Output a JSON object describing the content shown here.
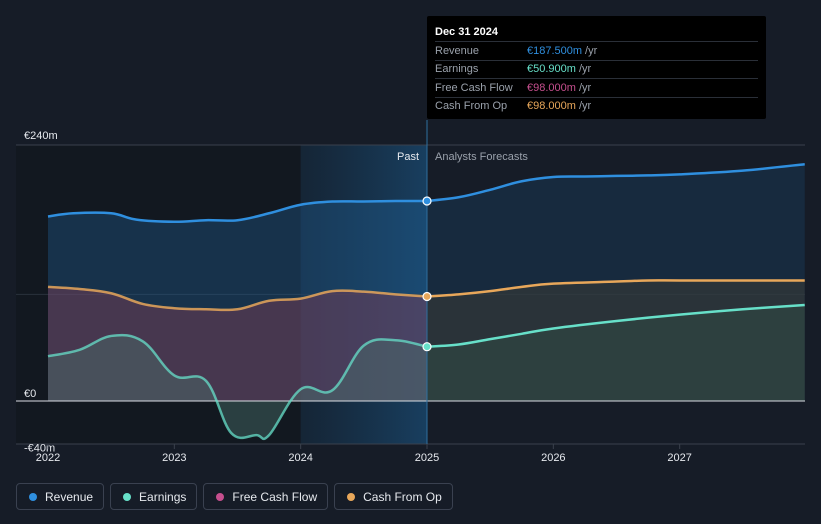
{
  "chart_data": {
    "type": "area",
    "x_range": [
      2021.8,
      2027.99
    ],
    "ylim": [
      -45,
      240
    ],
    "divider_x": 2025,
    "highlight_start_x": 2024,
    "region_labels": {
      "past": "Past",
      "forecast": "Analysts Forecasts"
    },
    "y_ticks": [
      {
        "value": 240,
        "label": "€240m"
      },
      {
        "value": 0,
        "label": "€0"
      },
      {
        "value": -40,
        "label": "-€40m"
      }
    ],
    "x_ticks": [
      {
        "value": 2022,
        "label": "2022"
      },
      {
        "value": 2023,
        "label": "2023"
      },
      {
        "value": 2024,
        "label": "2024"
      },
      {
        "value": 2025,
        "label": "2025"
      },
      {
        "value": 2026,
        "label": "2026"
      },
      {
        "value": 2027,
        "label": "2027"
      }
    ],
    "series": [
      {
        "key": "revenue",
        "name": "Revenue",
        "color": "#2f8fdf",
        "past": [
          [
            2022.0,
            173
          ],
          [
            2022.2,
            176
          ],
          [
            2022.5,
            176
          ],
          [
            2022.7,
            170
          ],
          [
            2023.0,
            168
          ],
          [
            2023.25,
            169.5
          ],
          [
            2023.5,
            169.5
          ],
          [
            2023.75,
            176
          ],
          [
            2024.0,
            184
          ],
          [
            2024.25,
            187
          ],
          [
            2024.5,
            187
          ],
          [
            2024.75,
            187.5
          ],
          [
            2025.0,
            187.5
          ]
        ],
        "forecast": [
          [
            2025.0,
            187.5
          ],
          [
            2025.25,
            191
          ],
          [
            2025.5,
            198
          ],
          [
            2025.75,
            206
          ],
          [
            2026.0,
            210
          ],
          [
            2026.25,
            210.5
          ],
          [
            2026.5,
            211
          ],
          [
            2026.75,
            211.5
          ],
          [
            2027.0,
            212.5
          ],
          [
            2027.5,
            216
          ],
          [
            2027.99,
            222
          ]
        ]
      },
      {
        "key": "cash_from_op",
        "name": "Cash From Op",
        "color": "#e8a75a",
        "past": [
          [
            2022.0,
            107
          ],
          [
            2022.25,
            105
          ],
          [
            2022.5,
            101
          ],
          [
            2022.75,
            91
          ],
          [
            2023.0,
            87
          ],
          [
            2023.25,
            86
          ],
          [
            2023.5,
            86
          ],
          [
            2023.75,
            94
          ],
          [
            2024.0,
            96
          ],
          [
            2024.25,
            103
          ],
          [
            2024.5,
            102.5
          ],
          [
            2024.75,
            100
          ],
          [
            2025.0,
            98
          ]
        ],
        "forecast": [
          [
            2025.0,
            98
          ],
          [
            2025.25,
            100
          ],
          [
            2025.5,
            103
          ],
          [
            2025.75,
            107
          ],
          [
            2026.0,
            110
          ],
          [
            2026.5,
            112
          ],
          [
            2026.75,
            113
          ],
          [
            2027.0,
            113
          ],
          [
            2027.5,
            113
          ],
          [
            2027.99,
            113
          ]
        ]
      },
      {
        "key": "free_cash_flow",
        "name": "Free Cash Flow",
        "color": "#c64f8e",
        "past": [
          [
            2022.0,
            107
          ],
          [
            2022.25,
            105
          ],
          [
            2022.5,
            101
          ],
          [
            2022.75,
            91
          ],
          [
            2023.0,
            87
          ],
          [
            2023.25,
            86
          ],
          [
            2023.5,
            86
          ],
          [
            2023.75,
            94
          ],
          [
            2024.0,
            96
          ],
          [
            2024.25,
            103
          ],
          [
            2024.5,
            102.5
          ],
          [
            2024.75,
            100
          ],
          [
            2025.0,
            98
          ]
        ],
        "forecast": []
      },
      {
        "key": "earnings",
        "name": "Earnings",
        "color": "#67e0c9",
        "past": [
          [
            2022.0,
            42
          ],
          [
            2022.25,
            48
          ],
          [
            2022.5,
            61
          ],
          [
            2022.75,
            56
          ],
          [
            2023.0,
            24
          ],
          [
            2023.25,
            19
          ],
          [
            2023.45,
            -30
          ],
          [
            2023.65,
            -32
          ],
          [
            2023.75,
            -32
          ],
          [
            2024.0,
            11
          ],
          [
            2024.25,
            10
          ],
          [
            2024.5,
            52
          ],
          [
            2024.75,
            57
          ],
          [
            2025.0,
            50.9
          ]
        ],
        "forecast": [
          [
            2025.0,
            50.9
          ],
          [
            2025.25,
            53
          ],
          [
            2025.5,
            58
          ],
          [
            2025.75,
            63
          ],
          [
            2026.0,
            68
          ],
          [
            2026.5,
            75
          ],
          [
            2027.0,
            81
          ],
          [
            2027.5,
            86
          ],
          [
            2027.99,
            90
          ]
        ]
      }
    ]
  },
  "tooltip": {
    "date": "Dec 31 2024",
    "rows": [
      {
        "label": "Revenue",
        "value": "€187.500m",
        "unit": "/yr",
        "color": "#2f8fdf"
      },
      {
        "label": "Earnings",
        "value": "€50.900m",
        "unit": "/yr",
        "color": "#67e0c9"
      },
      {
        "label": "Free Cash Flow",
        "value": "€98.000m",
        "unit": "/yr",
        "color": "#c64f8e"
      },
      {
        "label": "Cash From Op",
        "value": "€98.000m",
        "unit": "/yr",
        "color": "#e8a75a"
      }
    ]
  },
  "legend": [
    {
      "label": "Revenue",
      "color": "#2f8fdf"
    },
    {
      "label": "Earnings",
      "color": "#67e0c9"
    },
    {
      "label": "Free Cash Flow",
      "color": "#c64f8e"
    },
    {
      "label": "Cash From Op",
      "color": "#e8a75a"
    }
  ]
}
